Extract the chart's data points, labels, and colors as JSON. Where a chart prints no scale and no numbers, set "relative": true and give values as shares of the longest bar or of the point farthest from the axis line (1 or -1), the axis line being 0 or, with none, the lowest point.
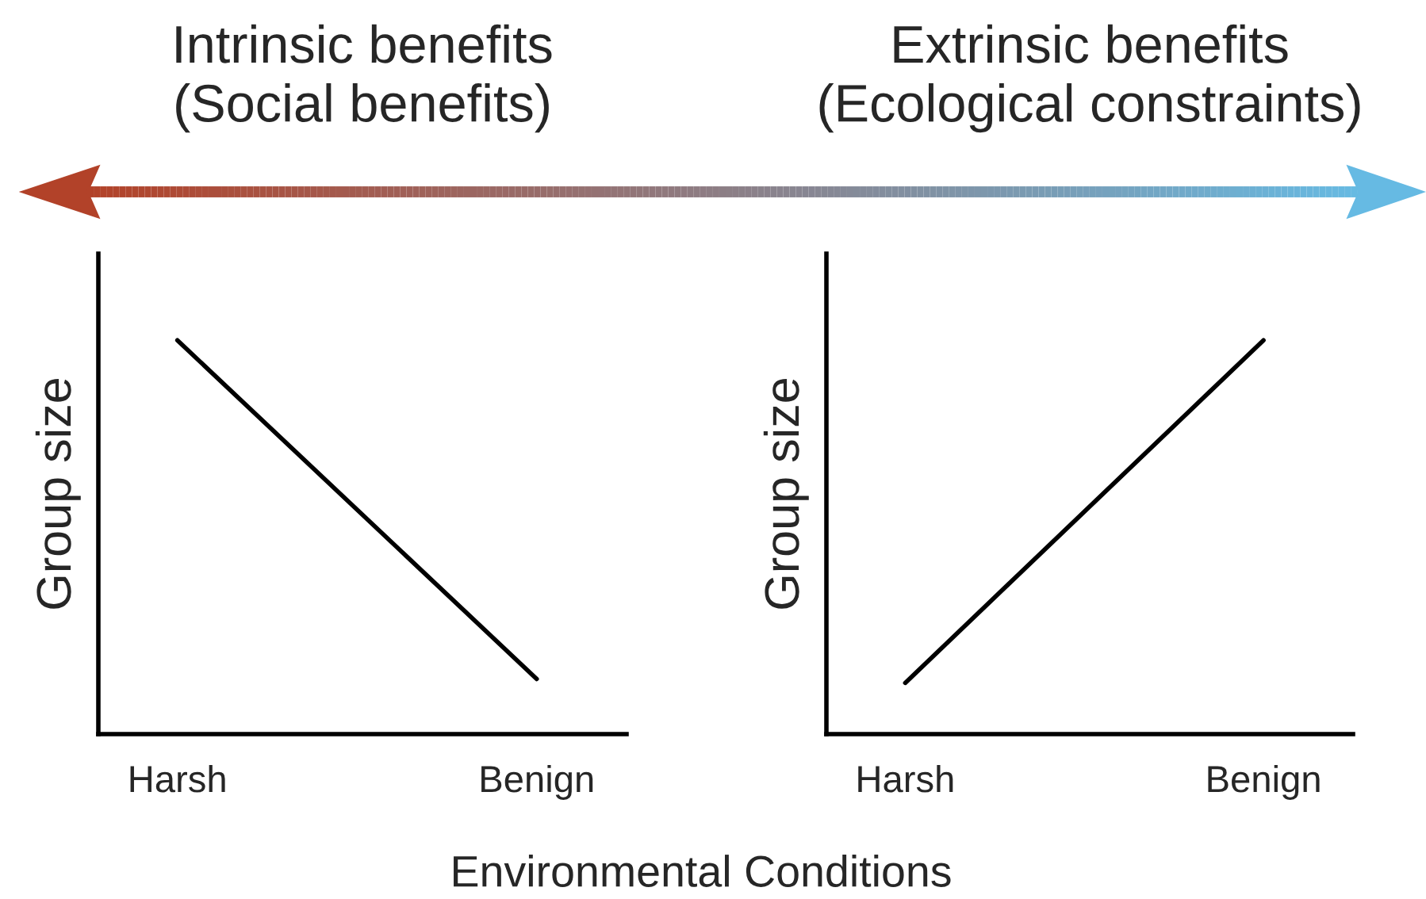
{
  "chart_data": [
    {
      "type": "line",
      "title": "Intrinsic benefits\n(Social benefits)",
      "xlabel": "Environmental Conditions",
      "ylabel": "Group size",
      "relative": true,
      "categories": [
        "Harsh",
        "Benign"
      ],
      "series": [
        {
          "color": "#000000",
          "values": [
            1,
            0.14
          ]
        }
      ]
    },
    {
      "type": "line",
      "title": "Extrinsic benefits\n(Ecological constraints)",
      "ylabel": "Group size",
      "relative": true,
      "categories": [
        "Harsh",
        "Benign"
      ],
      "series": [
        {
          "color": "#000000",
          "values": [
            0.13,
            1
          ]
        }
      ]
    }
  ]
}
